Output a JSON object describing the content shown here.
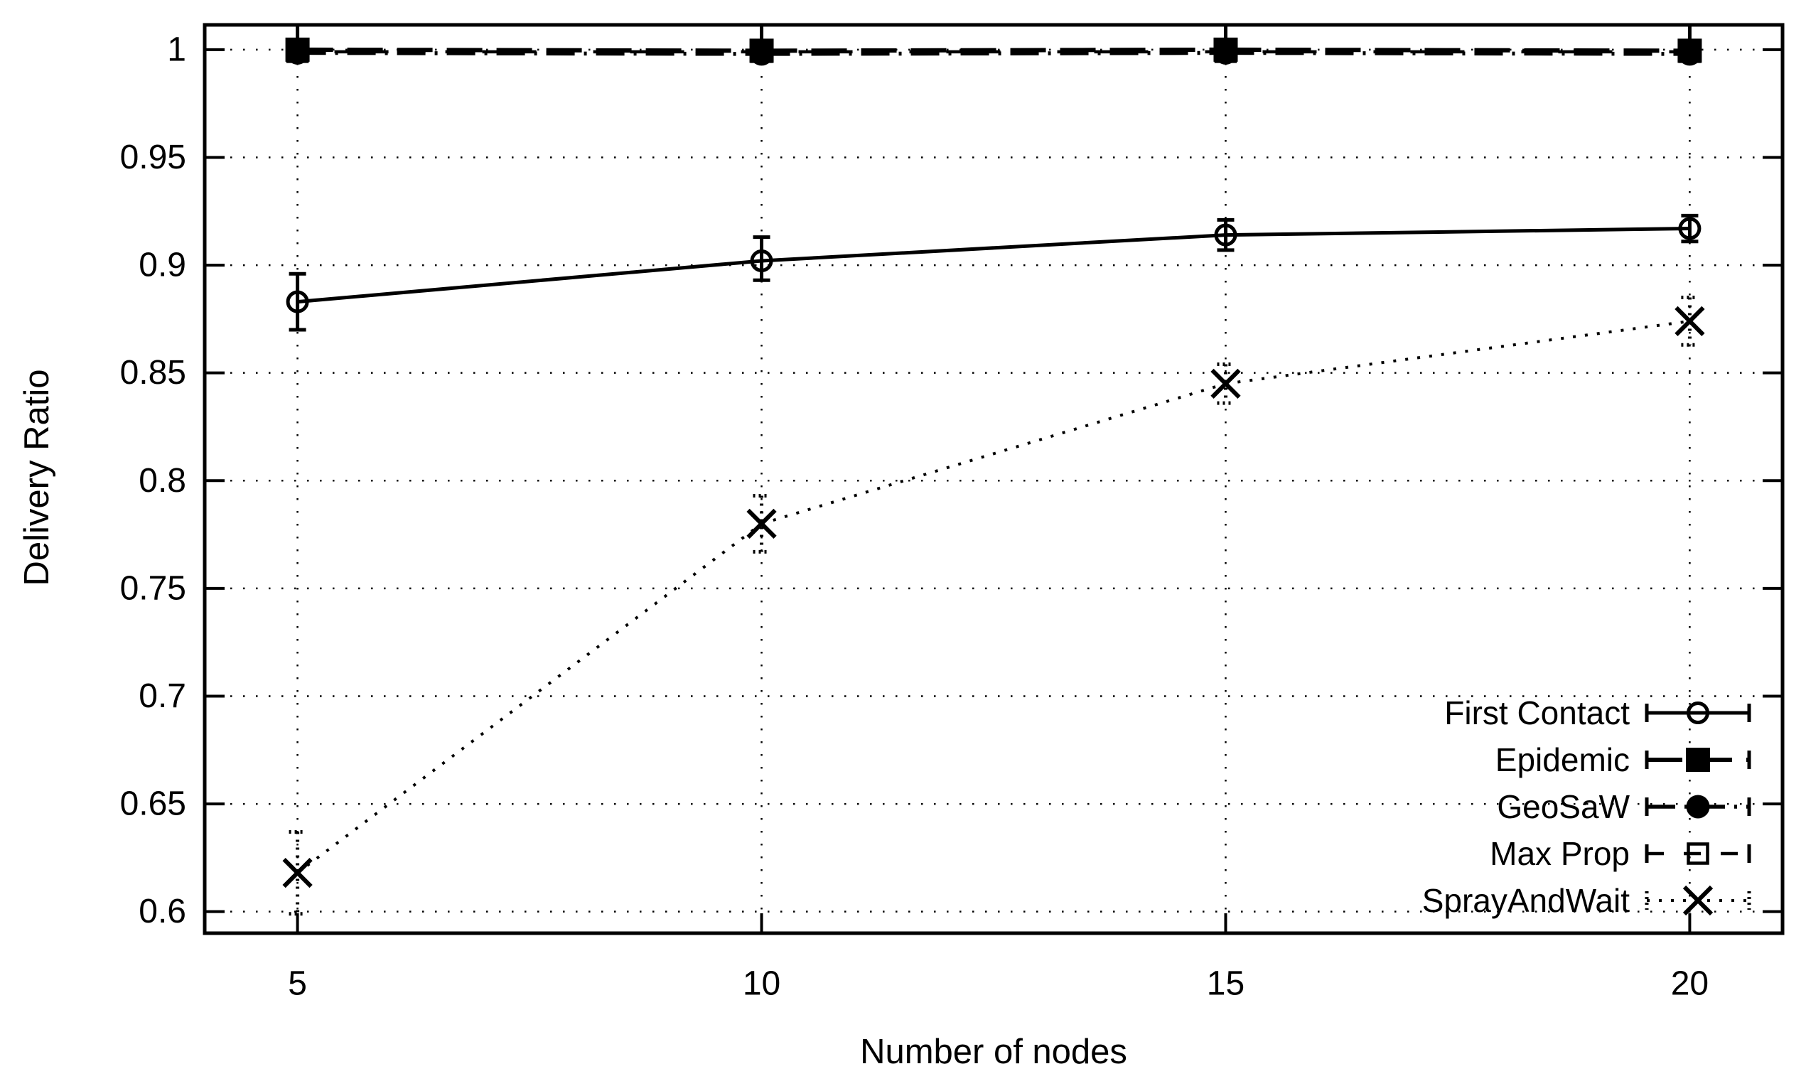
{
  "chart_data": {
    "type": "line",
    "title": "",
    "xlabel": "Number of nodes",
    "ylabel": "Delivery Ratio",
    "x": [
      5,
      10,
      15,
      20
    ],
    "xlim": [
      4,
      21
    ],
    "ylim": [
      0.59,
      1.0115
    ],
    "xticks": {
      "values": [
        5,
        10,
        15,
        20
      ],
      "labels": [
        "5",
        "10",
        "15",
        "20"
      ]
    },
    "yticks": {
      "values": [
        0.6,
        0.65,
        0.7,
        0.75,
        0.8,
        0.85,
        0.9,
        0.95,
        1.0
      ],
      "labels": [
        "0.6",
        "0.65",
        "0.7",
        "0.75",
        "0.8",
        "0.85",
        "0.9",
        "0.95",
        "1"
      ]
    },
    "grid": "dotted",
    "legend_position": "bottom-right-inside",
    "colors": {
      "foreground": "#000000",
      "background": "#ffffff"
    },
    "series": [
      {
        "name": "First Contact",
        "marker": "circle-open",
        "line": "solid",
        "values": [
          0.883,
          0.902,
          0.914,
          0.917
        ],
        "err_plus": [
          0.013,
          0.011,
          0.007,
          0.006
        ],
        "err_minus": [
          0.013,
          0.009,
          0.007,
          0.006
        ]
      },
      {
        "name": "Epidemic",
        "marker": "square-filled",
        "line": "dash",
        "values": [
          1.0,
          0.9995,
          1.0,
          0.9995
        ],
        "err_plus": [
          0.012,
          0.012,
          0.012,
          0.012
        ],
        "err_minus": [
          0.003,
          0.003,
          0.003,
          0.003
        ]
      },
      {
        "name": "GeoSaW",
        "marker": "circle-filled",
        "line": "dash-dot",
        "values": [
          0.9985,
          0.998,
          0.9985,
          0.998
        ],
        "err_plus": [
          0.003,
          0.003,
          0.003,
          0.003
        ],
        "err_minus": [
          0.003,
          0.003,
          0.003,
          0.003
        ]
      },
      {
        "name": "Max Prop",
        "marker": "square-open",
        "line": "dash-sparse",
        "values": [
          0.999,
          0.999,
          0.999,
          0.999
        ],
        "err_plus": [
          0.003,
          0.003,
          0.003,
          0.003
        ],
        "err_minus": [
          0.003,
          0.003,
          0.003,
          0.003
        ]
      },
      {
        "name": "SprayAndWait",
        "marker": "x",
        "line": "dotted",
        "values": [
          0.618,
          0.78,
          0.845,
          0.874
        ],
        "err_plus": [
          0.019,
          0.013,
          0.009,
          0.011
        ],
        "err_minus": [
          0.019,
          0.013,
          0.009,
          0.011
        ]
      }
    ]
  }
}
